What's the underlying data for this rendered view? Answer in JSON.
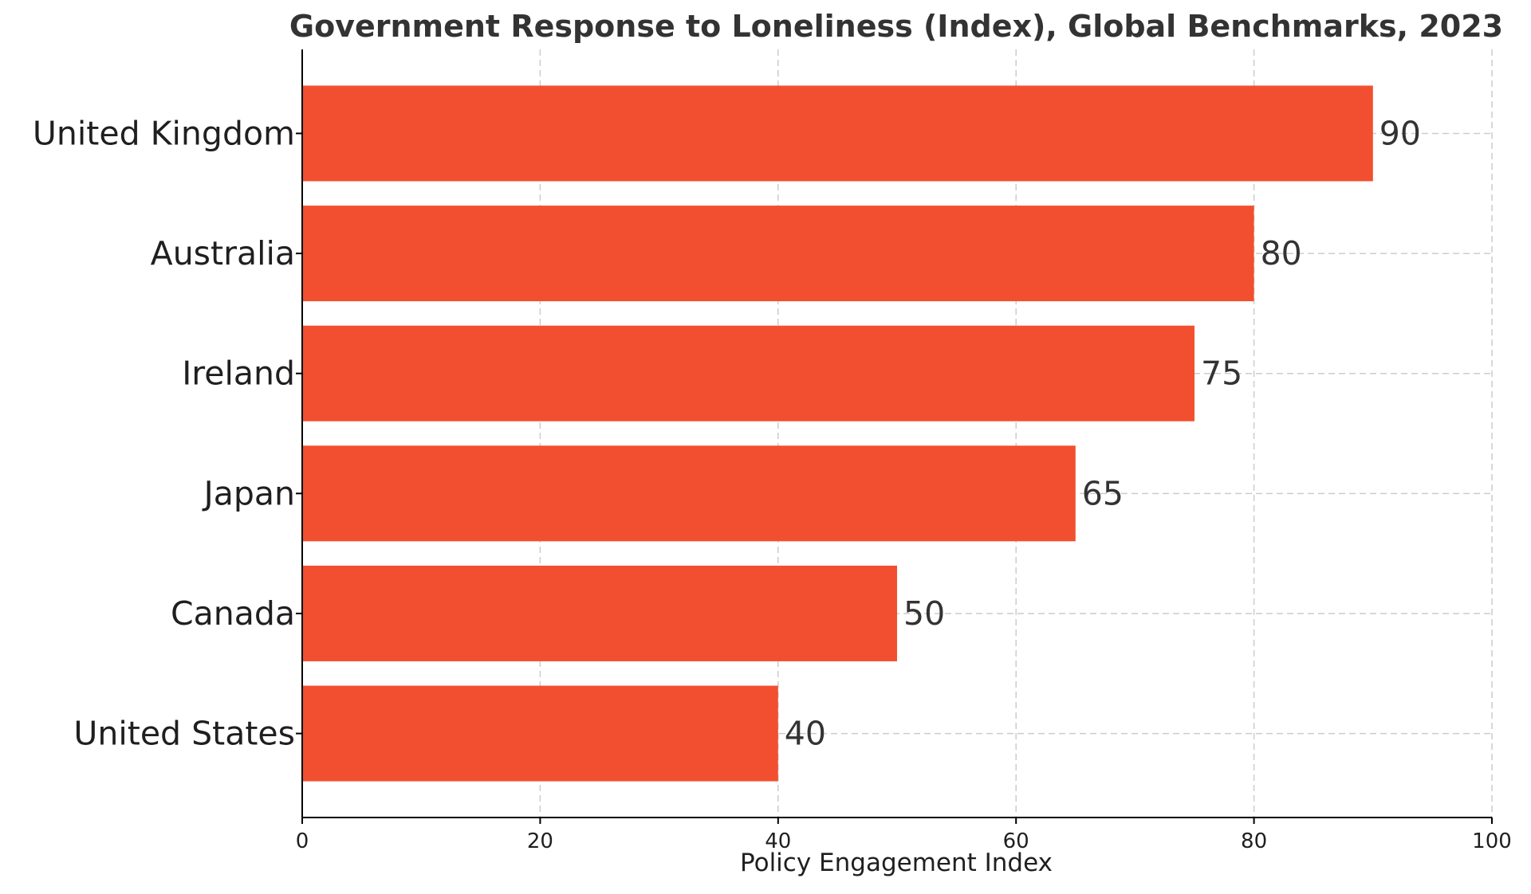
{
  "chart_data": {
    "type": "bar",
    "orientation": "horizontal",
    "title": "Government Response to Loneliness (Index), Global Benchmarks, 2023",
    "xlabel": "Policy Engagement Index",
    "ylabel": "",
    "categories": [
      "United Kingdom",
      "Australia",
      "Ireland",
      "Japan",
      "Canada",
      "United States"
    ],
    "values": [
      90,
      80,
      75,
      65,
      50,
      40
    ],
    "xlim": [
      0,
      100
    ],
    "xticks": [
      "0",
      "20",
      "40",
      "60",
      "80",
      "100"
    ],
    "grid": true,
    "bar_color": "#f24f30",
    "data_labels": [
      "90",
      "80",
      "75",
      "65",
      "50",
      "40"
    ]
  }
}
